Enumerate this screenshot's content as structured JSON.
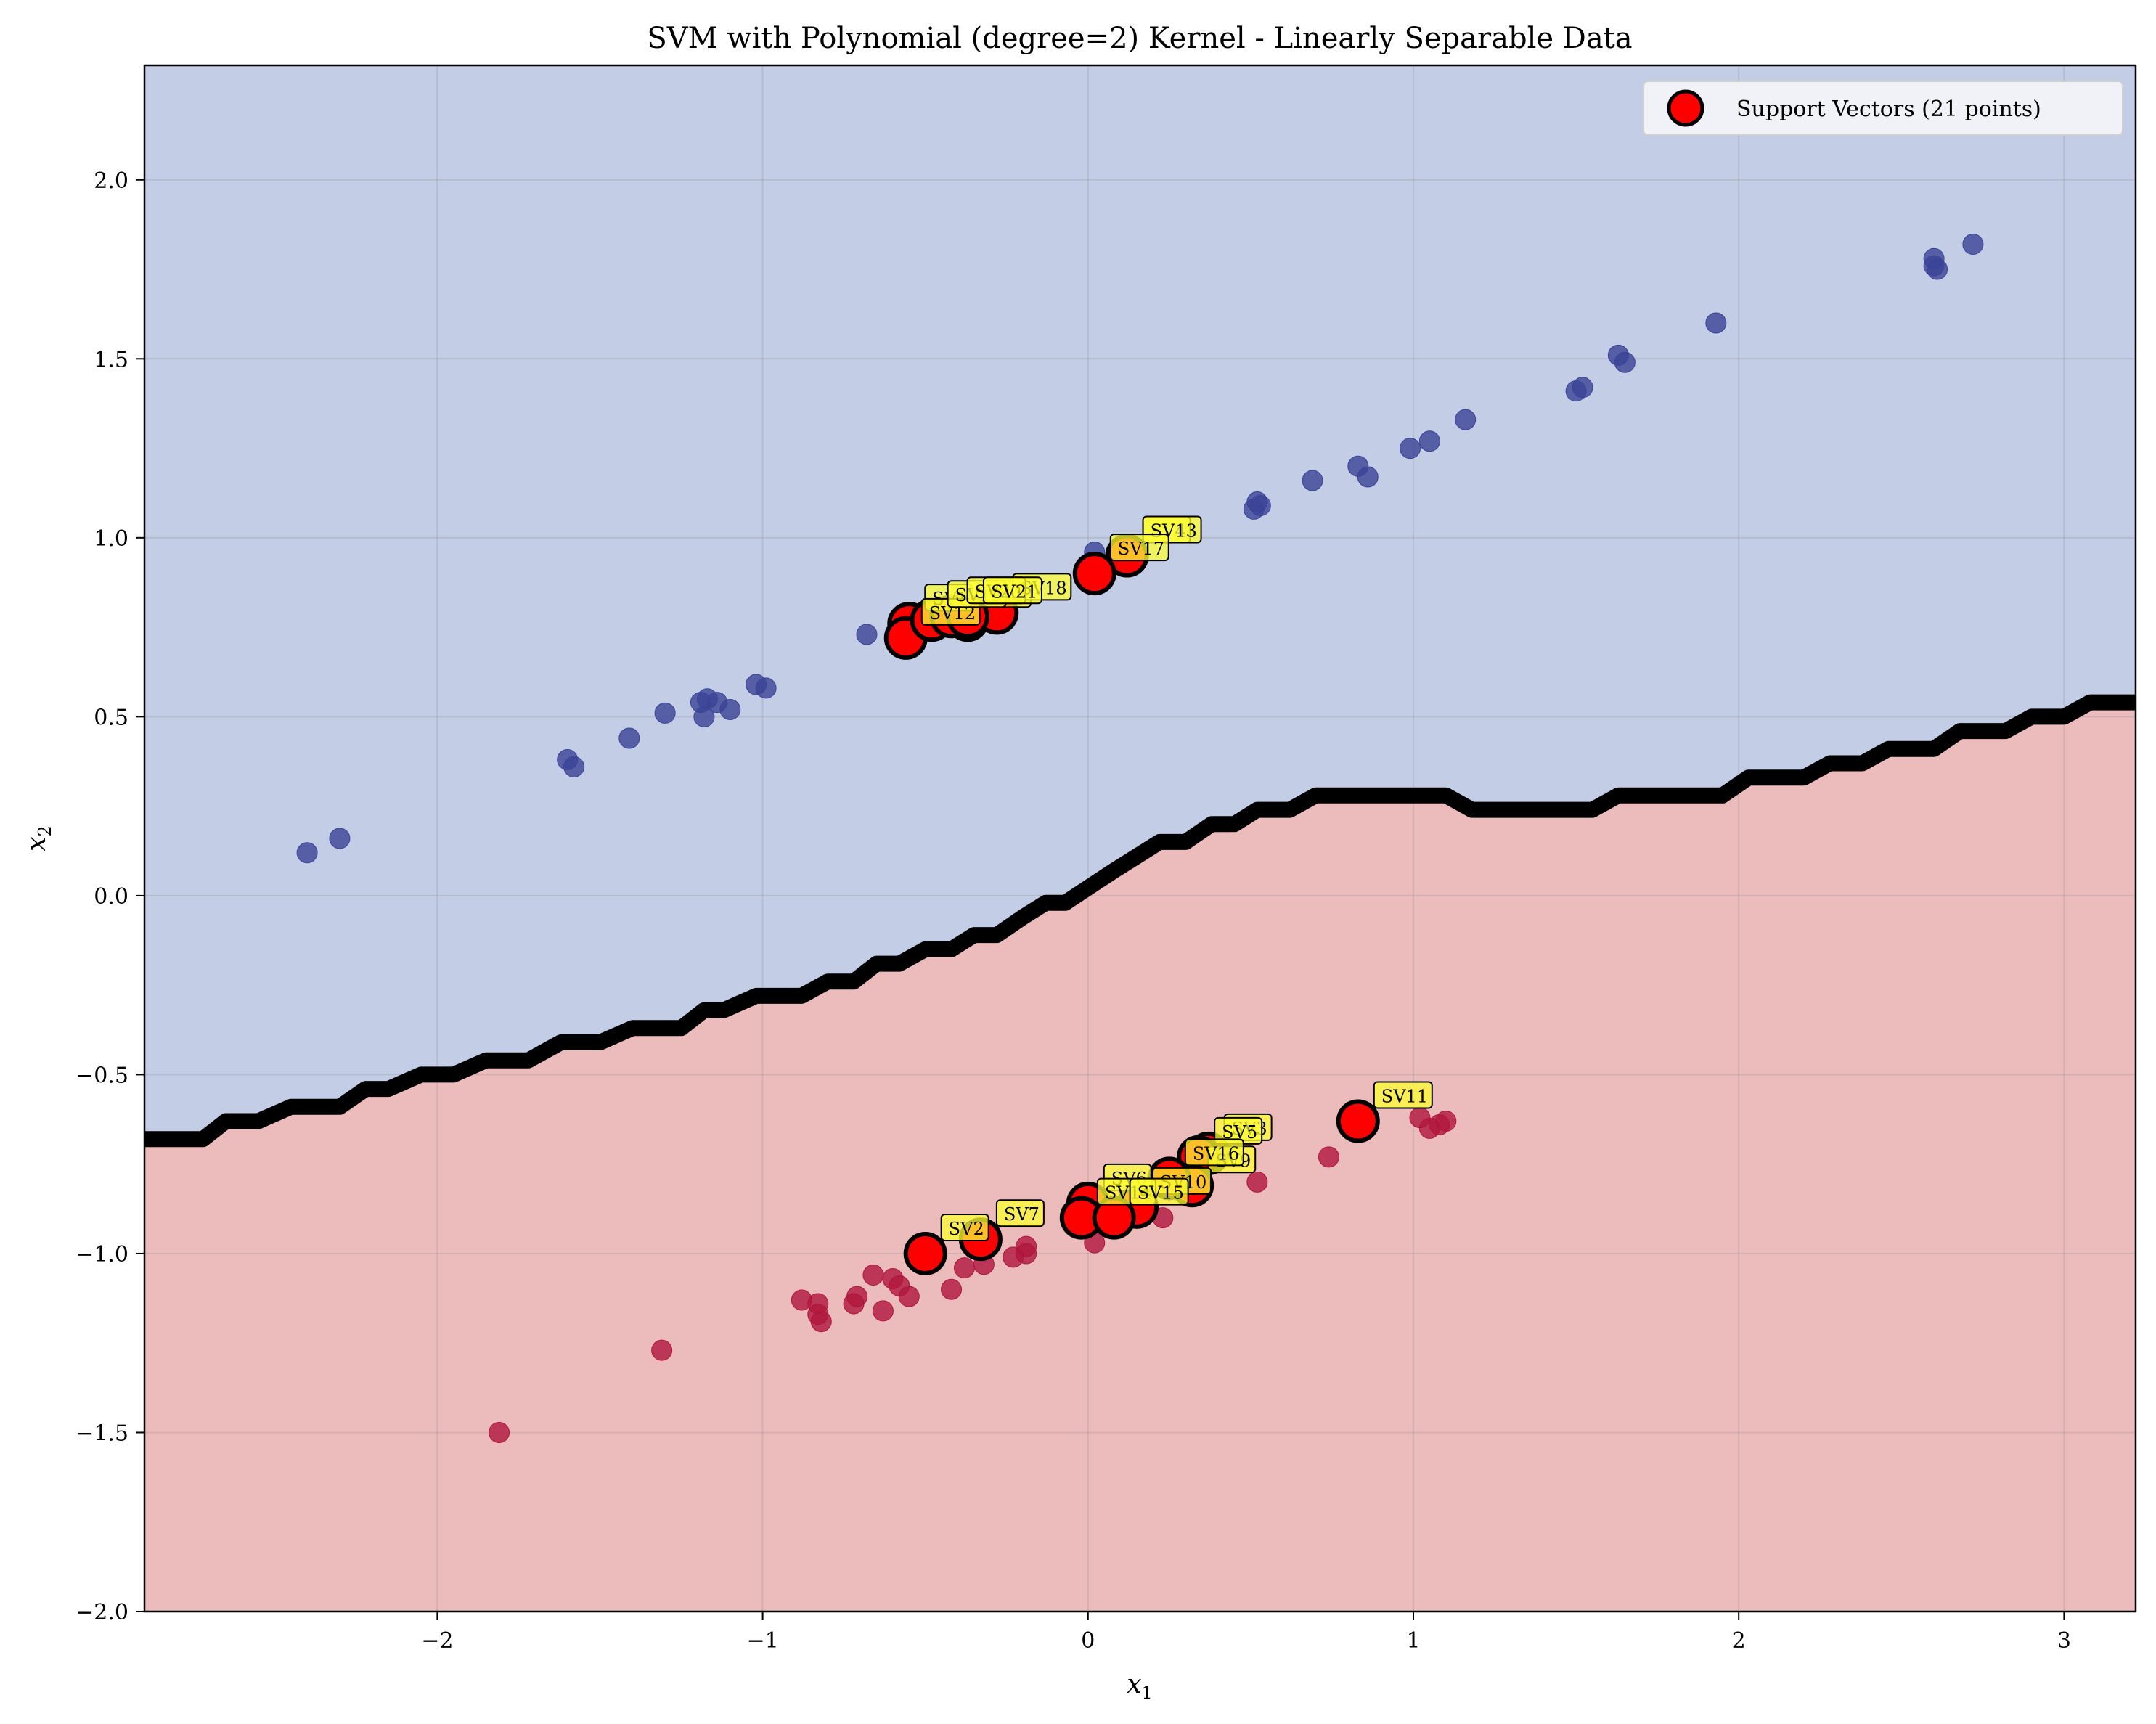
{
  "chart_data": {
    "type": "scatter",
    "title": "SVM with Polynomial (degree=2) Kernel - Linearly Separable Data",
    "xlabel": "x",
    "xlabel_sub": "1",
    "ylabel": "x",
    "ylabel_sub": "2",
    "xlim": [
      -2.9,
      3.22
    ],
    "ylim": [
      -2.0,
      2.32
    ],
    "xticks": [
      -2,
      -1,
      0,
      1,
      2,
      3
    ],
    "yticks": [
      -2.0,
      -1.5,
      -1.0,
      -0.5,
      0.0,
      0.5,
      1.0,
      1.5,
      2.0
    ],
    "xtick_labels": [
      "−2",
      "−1",
      "0",
      "1",
      "2",
      "3"
    ],
    "ytick_labels": [
      "−2.0",
      "−1.5",
      "−1.0",
      "−0.5",
      "0.0",
      "0.5",
      "1.0",
      "1.5",
      "2.0"
    ],
    "grid": true,
    "legend_position": "top-right",
    "legend": {
      "label": "Support Vectors (21 points)"
    },
    "colors": {
      "upper_region": "#c3cde6",
      "lower_region": "#ecbbbc",
      "class_blue": "#3b4396",
      "class_red": "#b0163d",
      "boundary": "#000000",
      "support_vector_fill": "#ff0000",
      "sv_label_bg": "#ffff33"
    },
    "decision_boundary": [
      [
        -2.9,
        -0.68
      ],
      [
        -2.72,
        -0.68
      ],
      [
        -2.65,
        -0.63
      ],
      [
        -2.55,
        -0.63
      ],
      [
        -2.45,
        -0.59
      ],
      [
        -2.3,
        -0.59
      ],
      [
        -2.22,
        -0.54
      ],
      [
        -2.15,
        -0.54
      ],
      [
        -2.05,
        -0.5
      ],
      [
        -1.95,
        -0.5
      ],
      [
        -1.85,
        -0.46
      ],
      [
        -1.72,
        -0.46
      ],
      [
        -1.62,
        -0.41
      ],
      [
        -1.5,
        -0.41
      ],
      [
        -1.4,
        -0.37
      ],
      [
        -1.25,
        -0.37
      ],
      [
        -1.18,
        -0.32
      ],
      [
        -1.12,
        -0.32
      ],
      [
        -1.02,
        -0.28
      ],
      [
        -0.88,
        -0.28
      ],
      [
        -0.8,
        -0.24
      ],
      [
        -0.72,
        -0.24
      ],
      [
        -0.65,
        -0.19
      ],
      [
        -0.58,
        -0.19
      ],
      [
        -0.5,
        -0.15
      ],
      [
        -0.42,
        -0.15
      ],
      [
        -0.35,
        -0.11
      ],
      [
        -0.28,
        -0.11
      ],
      [
        -0.2,
        -0.06
      ],
      [
        -0.13,
        -0.02
      ],
      [
        -0.07,
        -0.02
      ],
      [
        0.08,
        0.07
      ],
      [
        0.22,
        0.15
      ],
      [
        0.3,
        0.15
      ],
      [
        0.38,
        0.2
      ],
      [
        0.45,
        0.2
      ],
      [
        0.52,
        0.24
      ],
      [
        0.62,
        0.24
      ],
      [
        0.7,
        0.28
      ],
      [
        1.1,
        0.28
      ],
      [
        1.18,
        0.24
      ],
      [
        1.55,
        0.24
      ],
      [
        1.63,
        0.28
      ],
      [
        1.95,
        0.28
      ],
      [
        2.03,
        0.33
      ],
      [
        2.2,
        0.33
      ],
      [
        2.28,
        0.37
      ],
      [
        2.38,
        0.37
      ],
      [
        2.46,
        0.41
      ],
      [
        2.6,
        0.41
      ],
      [
        2.68,
        0.46
      ],
      [
        2.82,
        0.46
      ],
      [
        2.9,
        0.5
      ],
      [
        3.0,
        0.5
      ],
      [
        3.08,
        0.54
      ],
      [
        3.22,
        0.54
      ]
    ],
    "class_blue_points": [
      [
        -2.4,
        0.12
      ],
      [
        -2.3,
        0.16
      ],
      [
        -1.6,
        0.38
      ],
      [
        -1.58,
        0.36
      ],
      [
        -1.41,
        0.44
      ],
      [
        -1.3,
        0.51
      ],
      [
        -1.19,
        0.54
      ],
      [
        -1.18,
        0.5
      ],
      [
        -1.17,
        0.55
      ],
      [
        -1.14,
        0.54
      ],
      [
        -1.1,
        0.52
      ],
      [
        -1.02,
        0.59
      ],
      [
        -0.99,
        0.58
      ],
      [
        -0.68,
        0.73
      ],
      [
        0.02,
        0.96
      ],
      [
        0.51,
        1.08
      ],
      [
        0.52,
        1.1
      ],
      [
        0.53,
        1.09
      ],
      [
        0.69,
        1.16
      ],
      [
        0.83,
        1.2
      ],
      [
        0.86,
        1.17
      ],
      [
        0.99,
        1.25
      ],
      [
        1.05,
        1.27
      ],
      [
        1.16,
        1.33
      ],
      [
        1.5,
        1.41
      ],
      [
        1.52,
        1.42
      ],
      [
        1.63,
        1.51
      ],
      [
        1.65,
        1.49
      ],
      [
        1.93,
        1.6
      ],
      [
        2.6,
        1.76
      ],
      [
        2.61,
        1.75
      ],
      [
        2.6,
        1.78
      ],
      [
        2.72,
        1.82
      ]
    ],
    "class_red_points": [
      [
        -1.81,
        -1.5
      ],
      [
        -1.31,
        -1.27
      ],
      [
        -0.88,
        -1.13
      ],
      [
        -0.83,
        -1.14
      ],
      [
        -0.83,
        -1.17
      ],
      [
        -0.82,
        -1.19
      ],
      [
        -0.72,
        -1.14
      ],
      [
        -0.71,
        -1.12
      ],
      [
        -0.66,
        -1.06
      ],
      [
        -0.63,
        -1.16
      ],
      [
        -0.6,
        -1.07
      ],
      [
        -0.58,
        -1.09
      ],
      [
        -0.55,
        -1.12
      ],
      [
        -0.42,
        -1.1
      ],
      [
        -0.38,
        -1.04
      ],
      [
        -0.32,
        -1.03
      ],
      [
        -0.23,
        -1.01
      ],
      [
        -0.19,
        -1.0
      ],
      [
        -0.19,
        -0.98
      ],
      [
        0.02,
        -0.97
      ],
      [
        0.23,
        -0.9
      ],
      [
        0.52,
        -0.8
      ],
      [
        0.74,
        -0.73
      ],
      [
        1.02,
        -0.62
      ],
      [
        1.05,
        -0.65
      ],
      [
        1.08,
        -0.64
      ],
      [
        1.1,
        -0.63
      ]
    ],
    "support_vectors": [
      {
        "label": "SV1",
        "x": -0.55,
        "y": 0.76
      },
      {
        "label": "SV2",
        "x": -0.5,
        "y": -1.0
      },
      {
        "label": "SV3",
        "x": 0.37,
        "y": -0.72
      },
      {
        "label": "SV4",
        "x": 0.12,
        "y": 0.95
      },
      {
        "label": "SV5",
        "x": 0.34,
        "y": -0.73
      },
      {
        "label": "SV6",
        "x": 0.0,
        "y": -0.86
      },
      {
        "label": "SV7",
        "x": -0.33,
        "y": -0.96
      },
      {
        "label": "SV8",
        "x": -0.37,
        "y": 0.77
      },
      {
        "label": "SV9",
        "x": 0.32,
        "y": -0.81
      },
      {
        "label": "SV10",
        "x": 0.15,
        "y": -0.87
      },
      {
        "label": "SV11",
        "x": 0.83,
        "y": -0.63
      },
      {
        "label": "SV12",
        "x": -0.56,
        "y": 0.72
      },
      {
        "label": "SV13",
        "x": 0.12,
        "y": 0.95
      },
      {
        "label": "SV14",
        "x": -0.02,
        "y": -0.9
      },
      {
        "label": "SV15",
        "x": 0.08,
        "y": -0.9
      },
      {
        "label": "SV16",
        "x": 0.25,
        "y": -0.79
      },
      {
        "label": "SV17",
        "x": 0.02,
        "y": 0.9
      },
      {
        "label": "SV18",
        "x": -0.28,
        "y": 0.79
      },
      {
        "label": "SV19",
        "x": -0.48,
        "y": 0.77
      },
      {
        "label": "SV20",
        "x": -0.42,
        "y": 0.78
      },
      {
        "label": "SV21",
        "x": -0.37,
        "y": 0.78
      }
    ]
  }
}
